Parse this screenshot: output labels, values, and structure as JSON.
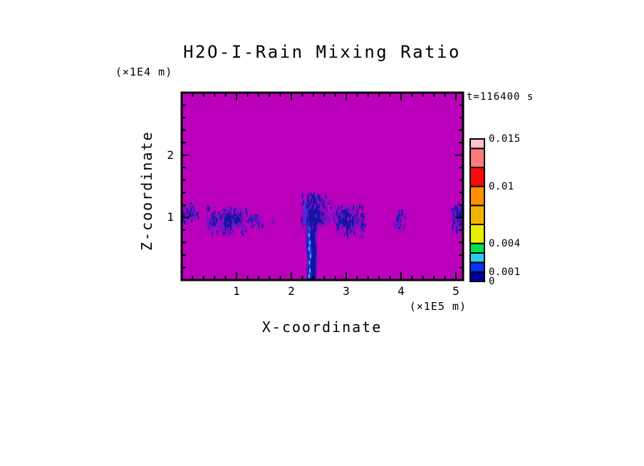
{
  "title": "H2O-I-Rain Mixing Ratio",
  "time_annotation": "t=116400 s",
  "axes": {
    "x_label": "X-coordinate",
    "x_unit": "(×1E5 m)",
    "z_label": "Z-coordinate",
    "z_unit": "(×1E4 m)"
  },
  "colors": {
    "field_zero": "#bb00bb",
    "fringe": "#7a10c8",
    "navy": "#1414a4",
    "royal": "#2343ee",
    "cyan": "#2bccf0",
    "frame": "#000000"
  },
  "chart_data": {
    "type": "heatmap",
    "title": "H2O-I-Rain Mixing Ratio",
    "xlabel": "X-coordinate",
    "x_unit": "(×1E5 m)",
    "ylabel": "Z-coordinate",
    "y_unit": "(×1E4 m)",
    "time_annotation": "t=116400 s",
    "xlim": [
      0,
      5.13
    ],
    "ylim": [
      0,
      3.0
    ],
    "x_ticks": [
      1,
      2,
      3,
      4,
      5
    ],
    "z_ticks": [
      1,
      2
    ],
    "minor_tick_step": 0.2,
    "grid": false,
    "background_note": "field value 0 rendered magenta",
    "colorbar": {
      "min": 0,
      "max": 0.015,
      "labels": [
        {
          "text": "0.015",
          "value": 0.015
        },
        {
          "text": "0.01",
          "value": 0.01
        },
        {
          "text": "0.004",
          "value": 0.004
        },
        {
          "text": "0.001",
          "value": 0.001
        },
        {
          "text": "0",
          "value": 0
        }
      ],
      "segments": [
        {
          "from": 0.0,
          "to": 0.001,
          "color": "#0000a0"
        },
        {
          "from": 0.001,
          "to": 0.002,
          "color": "#0433ff"
        },
        {
          "from": 0.002,
          "to": 0.003,
          "color": "#2bccf0"
        },
        {
          "from": 0.003,
          "to": 0.004,
          "color": "#00e34f"
        },
        {
          "from": 0.004,
          "to": 0.006,
          "color": "#ebeb00"
        },
        {
          "from": 0.006,
          "to": 0.008,
          "color": "#f2b300"
        },
        {
          "from": 0.008,
          "to": 0.01,
          "color": "#ff9000"
        },
        {
          "from": 0.01,
          "to": 0.012,
          "color": "#fa0a0a"
        },
        {
          "from": 0.012,
          "to": 0.014,
          "color": "#ff7a7a"
        },
        {
          "from": 0.014,
          "to": 0.015,
          "color": "#ffc0c8"
        }
      ]
    },
    "features": [
      {
        "name": "left-edge-cloud-fringe",
        "color": "fringe",
        "value": "trace",
        "polygon": [
          [
            0,
            0.97
          ],
          [
            0.02,
            1.1
          ],
          [
            0.06,
            1.05
          ],
          [
            0.08,
            1.2
          ],
          [
            0.13,
            1.12
          ],
          [
            0.18,
            1.22
          ],
          [
            0.22,
            1.1
          ],
          [
            0.28,
            1.12
          ],
          [
            0.3,
            1.0
          ],
          [
            0.24,
            0.96
          ],
          [
            0.18,
            1.02
          ],
          [
            0.1,
            0.95
          ],
          [
            0.04,
            0.99
          ]
        ]
      },
      {
        "name": "left-edge-cloud-core",
        "color": "navy",
        "value": "0-0.001",
        "polygon": [
          [
            0.01,
            1.0
          ],
          [
            0.03,
            1.12
          ],
          [
            0.08,
            1.08
          ],
          [
            0.12,
            1.14
          ],
          [
            0.16,
            1.05
          ],
          [
            0.1,
            0.99
          ],
          [
            0.05,
            1.02
          ]
        ]
      },
      {
        "name": "cloud-pair-fringe",
        "color": "fringe",
        "value": "trace",
        "polygon": [
          [
            0.44,
            0.9
          ],
          [
            0.47,
            1.02
          ],
          [
            0.53,
            0.98
          ],
          [
            0.57,
            1.08
          ],
          [
            0.63,
            1.02
          ],
          [
            0.66,
            1.1
          ],
          [
            0.72,
            1.04
          ],
          [
            0.76,
            1.16
          ],
          [
            0.82,
            1.1
          ],
          [
            0.87,
            1.2
          ],
          [
            0.93,
            1.1
          ],
          [
            0.99,
            1.16
          ],
          [
            1.06,
            1.06
          ],
          [
            1.12,
            1.1
          ],
          [
            1.17,
            0.98
          ],
          [
            1.13,
            0.88
          ],
          [
            1.05,
            0.82
          ],
          [
            0.97,
            0.86
          ],
          [
            0.9,
            0.78
          ],
          [
            0.82,
            0.84
          ],
          [
            0.74,
            0.8
          ],
          [
            0.66,
            0.86
          ],
          [
            0.58,
            0.82
          ],
          [
            0.5,
            0.86
          ]
        ]
      },
      {
        "name": "cloud-pair-core-west",
        "color": "navy",
        "value": "0-0.001",
        "polygon": [
          [
            0.5,
            0.9
          ],
          [
            0.53,
            1.0
          ],
          [
            0.6,
            1.03
          ],
          [
            0.66,
            0.96
          ],
          [
            0.62,
            0.87
          ],
          [
            0.54,
            0.85
          ]
        ]
      },
      {
        "name": "cloud-pair-core-east",
        "color": "navy",
        "value": "0-0.001",
        "polygon": [
          [
            0.76,
            0.92
          ],
          [
            0.8,
            1.06
          ],
          [
            0.88,
            1.12
          ],
          [
            0.96,
            1.04
          ],
          [
            1.03,
            1.08
          ],
          [
            1.09,
            0.98
          ],
          [
            1.02,
            0.88
          ],
          [
            0.94,
            0.92
          ],
          [
            0.86,
            0.84
          ],
          [
            0.79,
            0.85
          ]
        ]
      },
      {
        "name": "small-wisp-fringe",
        "color": "fringe",
        "value": "trace",
        "polygon": [
          [
            1.19,
            0.94
          ],
          [
            1.24,
            1.03
          ],
          [
            1.31,
            1.06
          ],
          [
            1.38,
            1.0
          ],
          [
            1.43,
            1.02
          ],
          [
            1.45,
            0.94
          ],
          [
            1.38,
            0.89
          ],
          [
            1.3,
            0.92
          ],
          [
            1.24,
            0.88
          ]
        ]
      },
      {
        "name": "small-wisp-core",
        "color": "navy",
        "value": "0-0.001",
        "polygon": [
          [
            1.26,
            0.94
          ],
          [
            1.3,
            1.0
          ],
          [
            1.35,
            0.96
          ],
          [
            1.3,
            0.91
          ]
        ]
      },
      {
        "name": "tiny-dot",
        "color": "fringe",
        "value": "trace",
        "polygon": [
          [
            1.63,
            0.9
          ],
          [
            1.66,
            1.0
          ],
          [
            1.71,
            0.96
          ],
          [
            1.68,
            0.88
          ]
        ]
      },
      {
        "name": "main-plume-fringe",
        "color": "fringe",
        "value": "trace",
        "polygon": [
          [
            2.18,
            0.95
          ],
          [
            2.2,
            1.12
          ],
          [
            2.25,
            1.05
          ],
          [
            2.28,
            1.3
          ],
          [
            2.33,
            1.44
          ],
          [
            2.38,
            1.35
          ],
          [
            2.44,
            1.38
          ],
          [
            2.5,
            1.22
          ],
          [
            2.58,
            1.18
          ],
          [
            2.64,
            1.05
          ],
          [
            2.7,
            1.02
          ],
          [
            2.72,
            0.92
          ],
          [
            2.62,
            0.88
          ],
          [
            2.55,
            0.95
          ],
          [
            2.5,
            0.85
          ],
          [
            2.47,
            0.6
          ],
          [
            2.49,
            0.3
          ],
          [
            2.46,
            0.0
          ],
          [
            2.26,
            0.0
          ],
          [
            2.28,
            0.35
          ],
          [
            2.25,
            0.6
          ],
          [
            2.26,
            0.85
          ],
          [
            2.2,
            0.88
          ]
        ]
      },
      {
        "name": "main-plume-canopy-core",
        "color": "navy",
        "value": "0-0.001",
        "polygon": [
          [
            2.22,
            1.0
          ],
          [
            2.26,
            1.22
          ],
          [
            2.31,
            1.4
          ],
          [
            2.37,
            1.3
          ],
          [
            2.43,
            1.33
          ],
          [
            2.49,
            1.18
          ],
          [
            2.55,
            1.12
          ],
          [
            2.6,
            1.0
          ],
          [
            2.64,
            0.98
          ],
          [
            2.58,
            0.9
          ],
          [
            2.5,
            0.92
          ],
          [
            2.44,
            0.86
          ],
          [
            2.38,
            0.9
          ],
          [
            2.3,
            0.94
          ]
        ]
      },
      {
        "name": "rain-shaft-core",
        "color": "navy",
        "value": "0-0.001",
        "polygon": [
          [
            2.28,
            0.98
          ],
          [
            2.45,
            0.98
          ],
          [
            2.43,
            0.7
          ],
          [
            2.46,
            0.45
          ],
          [
            2.44,
            0.2
          ],
          [
            2.45,
            0
          ],
          [
            2.29,
            0
          ],
          [
            2.31,
            0.3
          ],
          [
            2.28,
            0.55
          ],
          [
            2.3,
            0.75
          ]
        ]
      },
      {
        "name": "canopy-royal-band",
        "color": "royal",
        "value": "0.001-0.002",
        "polygon": [
          [
            2.21,
            1.0
          ],
          [
            2.24,
            1.2
          ],
          [
            2.28,
            1.32
          ],
          [
            2.3,
            1.15
          ],
          [
            2.27,
            1.0
          ],
          [
            2.29,
            0.9
          ],
          [
            2.24,
            0.88
          ]
        ]
      },
      {
        "name": "rain-shaft-royal-streak",
        "color": "royal",
        "value": "0.001-0.002",
        "polygon": [
          [
            2.31,
            0.9
          ],
          [
            2.36,
            0.88
          ],
          [
            2.34,
            0.65
          ],
          [
            2.37,
            0.45
          ],
          [
            2.34,
            0.25
          ],
          [
            2.36,
            0.05
          ],
          [
            2.31,
            0.05
          ],
          [
            2.33,
            0.35
          ],
          [
            2.3,
            0.6
          ],
          [
            2.32,
            0.78
          ]
        ]
      },
      {
        "name": "rain-shaft-cyan-flecks",
        "color": "cyan",
        "value": "0.002-0.003",
        "points": [
          [
            2.32,
            0.72
          ],
          [
            2.34,
            0.6
          ],
          [
            2.32,
            0.5
          ],
          [
            2.35,
            0.38
          ],
          [
            2.33,
            0.28
          ],
          [
            2.34,
            0.15
          ],
          [
            2.32,
            0.06
          ],
          [
            2.33,
            0.83
          ]
        ],
        "point_w": 0.025,
        "point_h": 0.06
      },
      {
        "name": "east-cloud-fringe",
        "color": "fringe",
        "value": "trace",
        "polygon": [
          [
            2.73,
            1.02
          ],
          [
            2.78,
            1.12
          ],
          [
            2.84,
            1.06
          ],
          [
            2.9,
            1.16
          ],
          [
            2.97,
            1.1
          ],
          [
            3.03,
            1.2
          ],
          [
            3.1,
            1.12
          ],
          [
            3.17,
            1.16
          ],
          [
            3.24,
            1.06
          ],
          [
            3.3,
            1.08
          ],
          [
            3.33,
            0.96
          ],
          [
            3.26,
            0.88
          ],
          [
            3.18,
            0.82
          ],
          [
            3.1,
            0.76
          ],
          [
            3.0,
            0.72
          ],
          [
            2.92,
            0.78
          ],
          [
            2.84,
            0.84
          ],
          [
            2.78,
            0.92
          ]
        ]
      },
      {
        "name": "east-cloud-core",
        "color": "navy",
        "value": "0-0.001",
        "polygon": [
          [
            2.84,
            1.02
          ],
          [
            2.9,
            1.1
          ],
          [
            2.98,
            1.14
          ],
          [
            3.06,
            1.06
          ],
          [
            3.14,
            1.02
          ],
          [
            3.18,
            0.94
          ],
          [
            3.12,
            0.85
          ],
          [
            3.04,
            0.78
          ],
          [
            2.96,
            0.84
          ],
          [
            2.9,
            0.9
          ],
          [
            2.86,
            0.96
          ]
        ]
      },
      {
        "name": "faint-wisp-fringe",
        "color": "fringe",
        "value": "trace",
        "polygon": [
          [
            3.86,
            0.9
          ],
          [
            3.9,
            1.0
          ],
          [
            3.95,
            1.1
          ],
          [
            4.0,
            1.14
          ],
          [
            4.05,
            1.05
          ],
          [
            4.02,
            0.95
          ],
          [
            3.96,
            0.88
          ],
          [
            3.9,
            0.84
          ]
        ]
      },
      {
        "name": "faint-wisp-specks",
        "color": "navy",
        "value": "0-0.001",
        "points": [
          [
            3.93,
            0.97
          ],
          [
            3.97,
            1.04
          ]
        ],
        "point_w": 0.025,
        "point_h": 0.05
      },
      {
        "name": "right-edge-cloud-fringe",
        "color": "fringe",
        "value": "trace",
        "polygon": [
          [
            4.9,
            1.05
          ],
          [
            4.95,
            1.15
          ],
          [
            5.0,
            1.22
          ],
          [
            5.06,
            1.16
          ],
          [
            5.13,
            1.2
          ],
          [
            5.13,
            0.82
          ],
          [
            5.06,
            0.8
          ],
          [
            5.0,
            0.88
          ],
          [
            4.95,
            0.95
          ]
        ]
      },
      {
        "name": "right-edge-cloud-core",
        "color": "navy",
        "value": "0-0.001",
        "polygon": [
          [
            4.98,
            1.08
          ],
          [
            5.04,
            1.14
          ],
          [
            5.1,
            1.06
          ],
          [
            5.13,
            1.1
          ],
          [
            5.13,
            0.88
          ],
          [
            5.06,
            0.86
          ],
          [
            5.0,
            0.96
          ]
        ]
      }
    ],
    "speckle_regions": [
      {
        "name": "left-edge-texture",
        "x0": 0.0,
        "x1": 0.3,
        "z0": 0.95,
        "z1": 1.25,
        "count": 50
      },
      {
        "name": "cloud-pair-texture",
        "x0": 0.45,
        "x1": 1.2,
        "z0": 0.75,
        "z1": 1.2,
        "count": 150
      },
      {
        "name": "small-wisp-texture",
        "x0": 1.2,
        "x1": 1.46,
        "z0": 0.87,
        "z1": 1.06,
        "count": 40
      },
      {
        "name": "plume-texture",
        "x0": 2.15,
        "x1": 2.72,
        "z0": 0.85,
        "z1": 1.42,
        "count": 120
      },
      {
        "name": "east-cloud-texture",
        "x0": 2.75,
        "x1": 3.35,
        "z0": 0.72,
        "z1": 1.22,
        "count": 140
      },
      {
        "name": "faint-wisp-texture",
        "x0": 3.86,
        "x1": 4.08,
        "z0": 0.84,
        "z1": 1.15,
        "count": 40
      },
      {
        "name": "right-edge-texture",
        "x0": 4.9,
        "x1": 5.13,
        "z0": 0.8,
        "z1": 1.25,
        "count": 60
      }
    ]
  }
}
